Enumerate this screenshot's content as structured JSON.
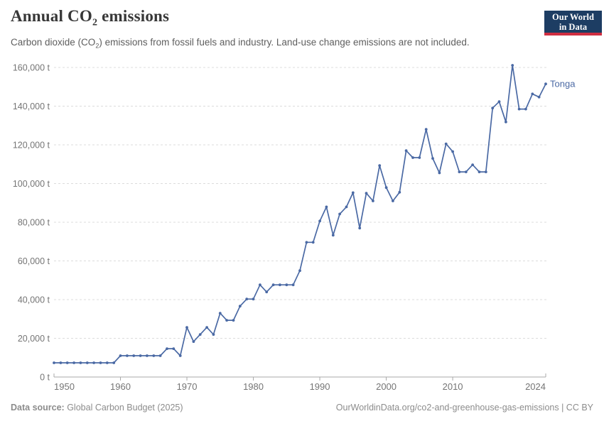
{
  "header": {
    "title_pre": "Annual CO",
    "title_sub": "2",
    "title_post": " emissions",
    "subtitle_pre": "Carbon dioxide (CO",
    "subtitle_sub": "2",
    "subtitle_post": ") emissions from fossil fuels and industry. Land-use change emissions are not included.",
    "logo_line1": "Our World",
    "logo_line2": "in Data",
    "logo_bg_color": "#1d3d63",
    "logo_stripe_color": "#cf2e41"
  },
  "chart_data": {
    "type": "line",
    "title": "Annual CO₂ emissions",
    "subtitle": "Carbon dioxide (CO₂) emissions from fossil fuels and industry. Land-use change emissions are not included.",
    "unit": "t",
    "entity_label": "Tonga",
    "line_color": "#4a69a4",
    "grid": "horizontal-dashed",
    "legend_position": "line-end-label",
    "xlim": [
      1950,
      2024
    ],
    "ylim": [
      0,
      160000
    ],
    "x_ticks": [
      {
        "year": 1950,
        "label": "1950"
      },
      {
        "year": 1960,
        "label": "1960"
      },
      {
        "year": 1970,
        "label": "1970"
      },
      {
        "year": 1980,
        "label": "1980"
      },
      {
        "year": 1990,
        "label": "1990"
      },
      {
        "year": 2000,
        "label": "2000"
      },
      {
        "year": 2010,
        "label": "2010"
      },
      {
        "year": 2024,
        "label": "2024"
      }
    ],
    "y_ticks": [
      {
        "value": 0,
        "label": "0 t"
      },
      {
        "value": 20000,
        "label": "20,000 t"
      },
      {
        "value": 40000,
        "label": "40,000 t"
      },
      {
        "value": 60000,
        "label": "60,000 t"
      },
      {
        "value": 80000,
        "label": "80,000 t"
      },
      {
        "value": 100000,
        "label": "100,000 t"
      },
      {
        "value": 120000,
        "label": "120,000 t"
      },
      {
        "value": 140000,
        "label": "140,000 t"
      },
      {
        "value": 160000,
        "label": "160,000 t"
      }
    ],
    "x": [
      1950,
      1951,
      1952,
      1953,
      1954,
      1955,
      1956,
      1957,
      1958,
      1959,
      1960,
      1961,
      1962,
      1963,
      1964,
      1965,
      1966,
      1967,
      1968,
      1969,
      1970,
      1971,
      1972,
      1973,
      1974,
      1975,
      1976,
      1977,
      1978,
      1979,
      1980,
      1981,
      1982,
      1983,
      1984,
      1985,
      1986,
      1987,
      1988,
      1989,
      1990,
      1991,
      1992,
      1993,
      1994,
      1995,
      1996,
      1997,
      1998,
      1999,
      2000,
      2001,
      2002,
      2003,
      2004,
      2005,
      2006,
      2007,
      2008,
      2009,
      2010,
      2011,
      2012,
      2013,
      2014,
      2015,
      2016,
      2017,
      2018,
      2019,
      2020,
      2021,
      2022,
      2023,
      2024
    ],
    "series": [
      {
        "name": "Tonga",
        "values": [
          7328,
          7328,
          7328,
          7328,
          7328,
          7328,
          7328,
          7328,
          7328,
          7328,
          10992,
          10992,
          10992,
          10992,
          10992,
          10992,
          10992,
          14656,
          14656,
          10992,
          25648,
          18320,
          21984,
          25648,
          21984,
          32976,
          29312,
          29312,
          36640,
          40304,
          40304,
          47632,
          43968,
          47632,
          47632,
          47632,
          47632,
          54960,
          69616,
          69616,
          80608,
          87936,
          73280,
          84272,
          87936,
          95264,
          76944,
          95000,
          91000,
          109300,
          97900,
          91000,
          95500,
          117000,
          113400,
          113400,
          128000,
          113000,
          105500,
          120500,
          116500,
          106000,
          106000,
          109700,
          106000,
          106000,
          139000,
          142300,
          131800,
          161100,
          138500,
          138500,
          146300,
          144700,
          151500
        ]
      }
    ]
  },
  "footer": {
    "source_label": "Data source:",
    "source_value": " Global Carbon Budget (2025)",
    "link": "OurWorldinData.org/co2-and-greenhouse-gas-emissions | CC BY"
  }
}
